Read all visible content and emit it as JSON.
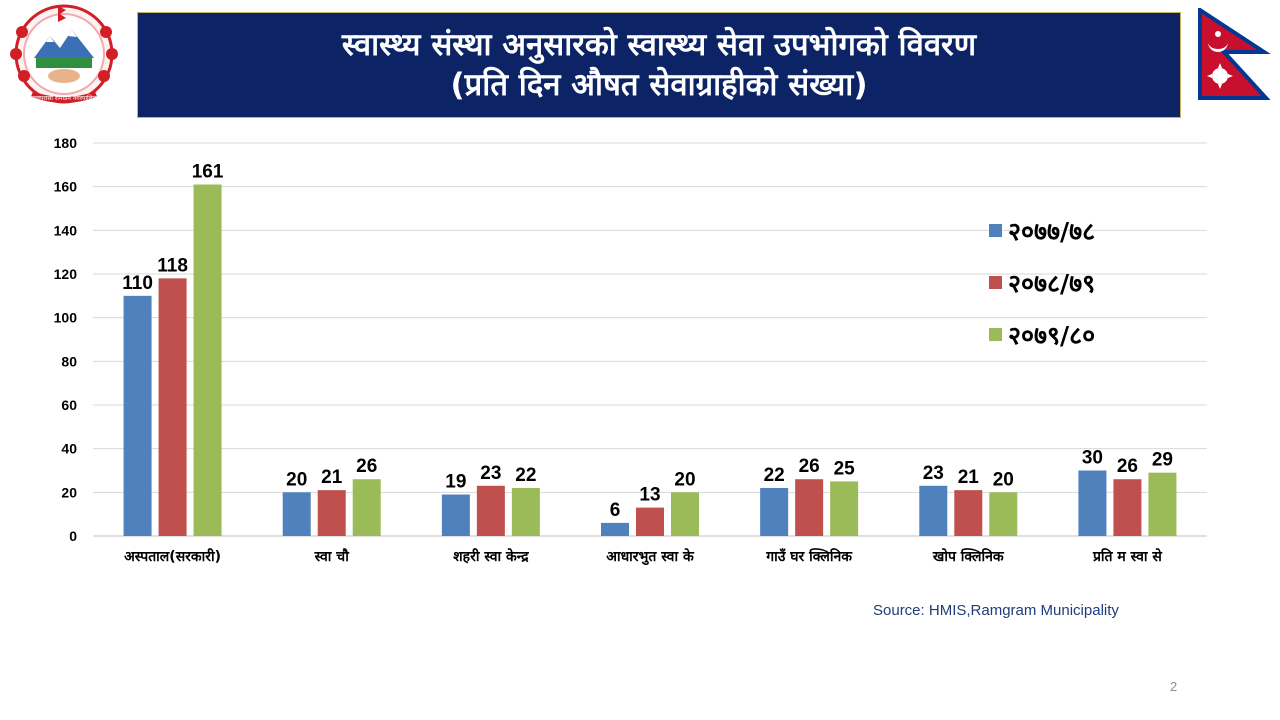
{
  "slide": {
    "title_line1": "स्वास्थ्य संस्था अनुसारको स्वास्थ्य सेवा उपभोगको विवरण",
    "title_line2": "(प्रति दिन औषत सेवाग्राहीको संख्या)",
    "source": "Source: HMIS,Ramgram Municipality",
    "page_number": "2",
    "emblem_text": "नवलपरासी रामग्राम नगरपालिका",
    "title_bg_color": "#0c2366"
  },
  "chart_data": {
    "type": "bar",
    "categories": [
      "अस्पताल(सरकारी)",
      "स्वा चौ",
      "शहरी स्वा केन्द्र",
      "आधारभुत स्वा के",
      "गाउँ घर क्लिनिक",
      "खोप क्लिनिक",
      "प्रति म स्वा से"
    ],
    "series": [
      {
        "name": "२०७७/७८",
        "color": "#4f81bd",
        "values": [
          110,
          20,
          19,
          6,
          22,
          23,
          30
        ]
      },
      {
        "name": "२०७८/७९",
        "color": "#c0504d",
        "values": [
          118,
          21,
          23,
          13,
          26,
          21,
          26
        ]
      },
      {
        "name": "२०७९/८०",
        "color": "#9bbb59",
        "values": [
          161,
          26,
          22,
          20,
          25,
          20,
          29
        ]
      }
    ],
    "ylim": [
      0,
      180
    ],
    "yticks": [
      0,
      20,
      40,
      60,
      80,
      100,
      120,
      140,
      160,
      180
    ],
    "grid": true,
    "legend_position": "right",
    "data_labels": true
  }
}
